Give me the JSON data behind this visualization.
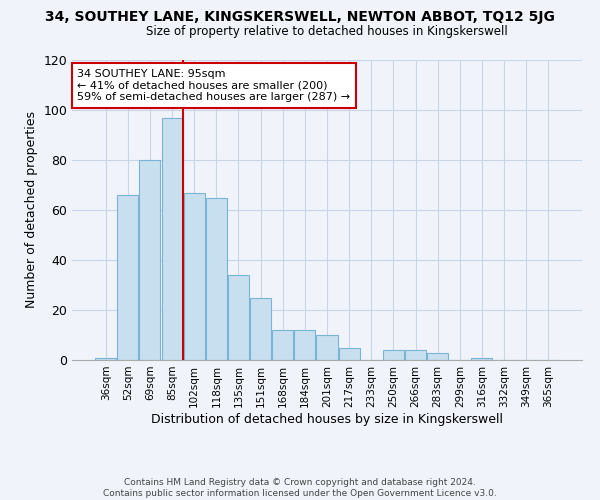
{
  "title": "34, SOUTHEY LANE, KINGSKERSWELL, NEWTON ABBOT, TQ12 5JG",
  "subtitle": "Size of property relative to detached houses in Kingskerswell",
  "xlabel": "Distribution of detached houses by size in Kingskerswell",
  "ylabel": "Number of detached properties",
  "bar_labels": [
    "36sqm",
    "52sqm",
    "69sqm",
    "85sqm",
    "102sqm",
    "118sqm",
    "135sqm",
    "151sqm",
    "168sqm",
    "184sqm",
    "201sqm",
    "217sqm",
    "233sqm",
    "250sqm",
    "266sqm",
    "283sqm",
    "299sqm",
    "316sqm",
    "332sqm",
    "349sqm",
    "365sqm"
  ],
  "bar_values": [
    1,
    66,
    80,
    97,
    67,
    65,
    34,
    25,
    12,
    12,
    10,
    5,
    0,
    4,
    4,
    3,
    0,
    1,
    0,
    0,
    0
  ],
  "bar_color": "#c8dff0",
  "bar_edge_color": "#7ab4d4",
  "vline_color": "#cc0000",
  "annotation_text": "34 SOUTHEY LANE: 95sqm\n← 41% of detached houses are smaller (200)\n59% of semi-detached houses are larger (287) →",
  "annotation_box_color": "#ffffff",
  "annotation_box_edge": "#cc0000",
  "ylim": [
    0,
    120
  ],
  "yticks": [
    0,
    20,
    40,
    60,
    80,
    100,
    120
  ],
  "footer_line1": "Contains HM Land Registry data © Crown copyright and database right 2024.",
  "footer_line2": "Contains public sector information licensed under the Open Government Licence v3.0.",
  "bg_color": "#f0f4fa",
  "grid_color": "#c8d4e8",
  "title_fontsize": 10,
  "subtitle_fontsize": 8.5,
  "footer_fontsize": 6.5
}
